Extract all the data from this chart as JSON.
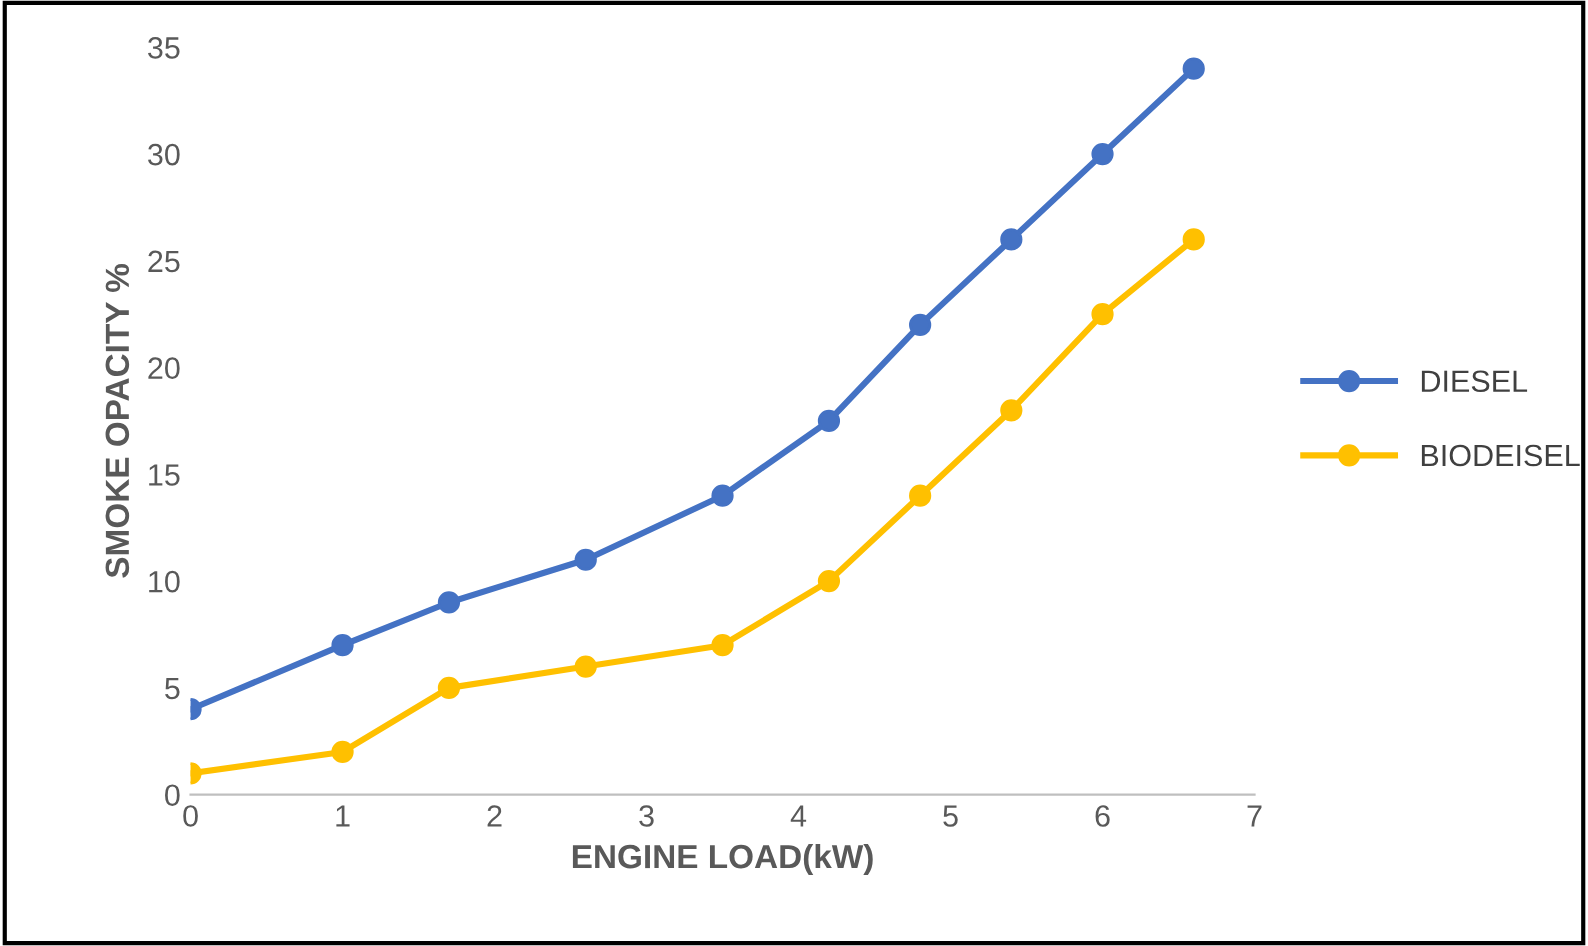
{
  "chart_data": {
    "type": "line",
    "xlabel": "ENGINE LOAD(kW)",
    "ylabel": "SMOKE OPACITY %",
    "x": [
      0,
      1.0,
      1.7,
      2.6,
      3.5,
      4.2,
      4.8,
      5.4,
      6.0,
      6.6
    ],
    "series": [
      {
        "name": "DIESEL",
        "color": "#4472c4",
        "values": [
          4,
          7,
          9,
          11,
          14,
          17.5,
          22,
          26,
          30,
          34
        ]
      },
      {
        "name": "BIODEISEL",
        "color": "#ffc000",
        "values": [
          1,
          2,
          5,
          6,
          7,
          10,
          14,
          18,
          22.5,
          26
        ]
      }
    ],
    "xlim": [
      0,
      7
    ],
    "xticks": [
      0,
      1,
      2,
      3,
      4,
      5,
      6,
      7
    ],
    "ylim": [
      0,
      35
    ],
    "yticks": [
      0,
      5,
      10,
      15,
      20,
      25,
      30,
      35
    ],
    "grid": false,
    "legend": "right",
    "marker": "circle",
    "line_style": "solid"
  }
}
